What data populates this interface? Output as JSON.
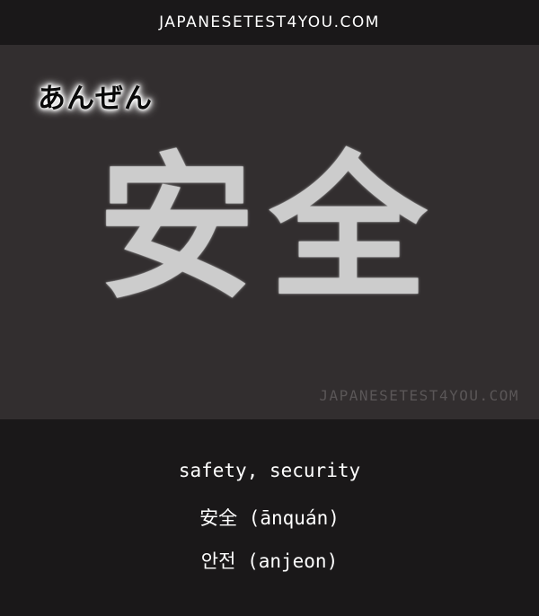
{
  "header": {
    "site_title": "JAPANESETEST4YOU.COM"
  },
  "card": {
    "reading": "あんぜん",
    "kanji": "安全",
    "watermark": "JAPANESETEST4YOU.COM"
  },
  "meanings": {
    "english": "safety, security",
    "chinese": "安全 (ānquán)",
    "korean": "안전 (anjeon)"
  },
  "colors": {
    "header_background": "#1a1819",
    "board_background": "#322e2f",
    "kanji_color": "#d6d6d6",
    "text_color": "#ffffff",
    "watermark_color": "#5a5657"
  }
}
